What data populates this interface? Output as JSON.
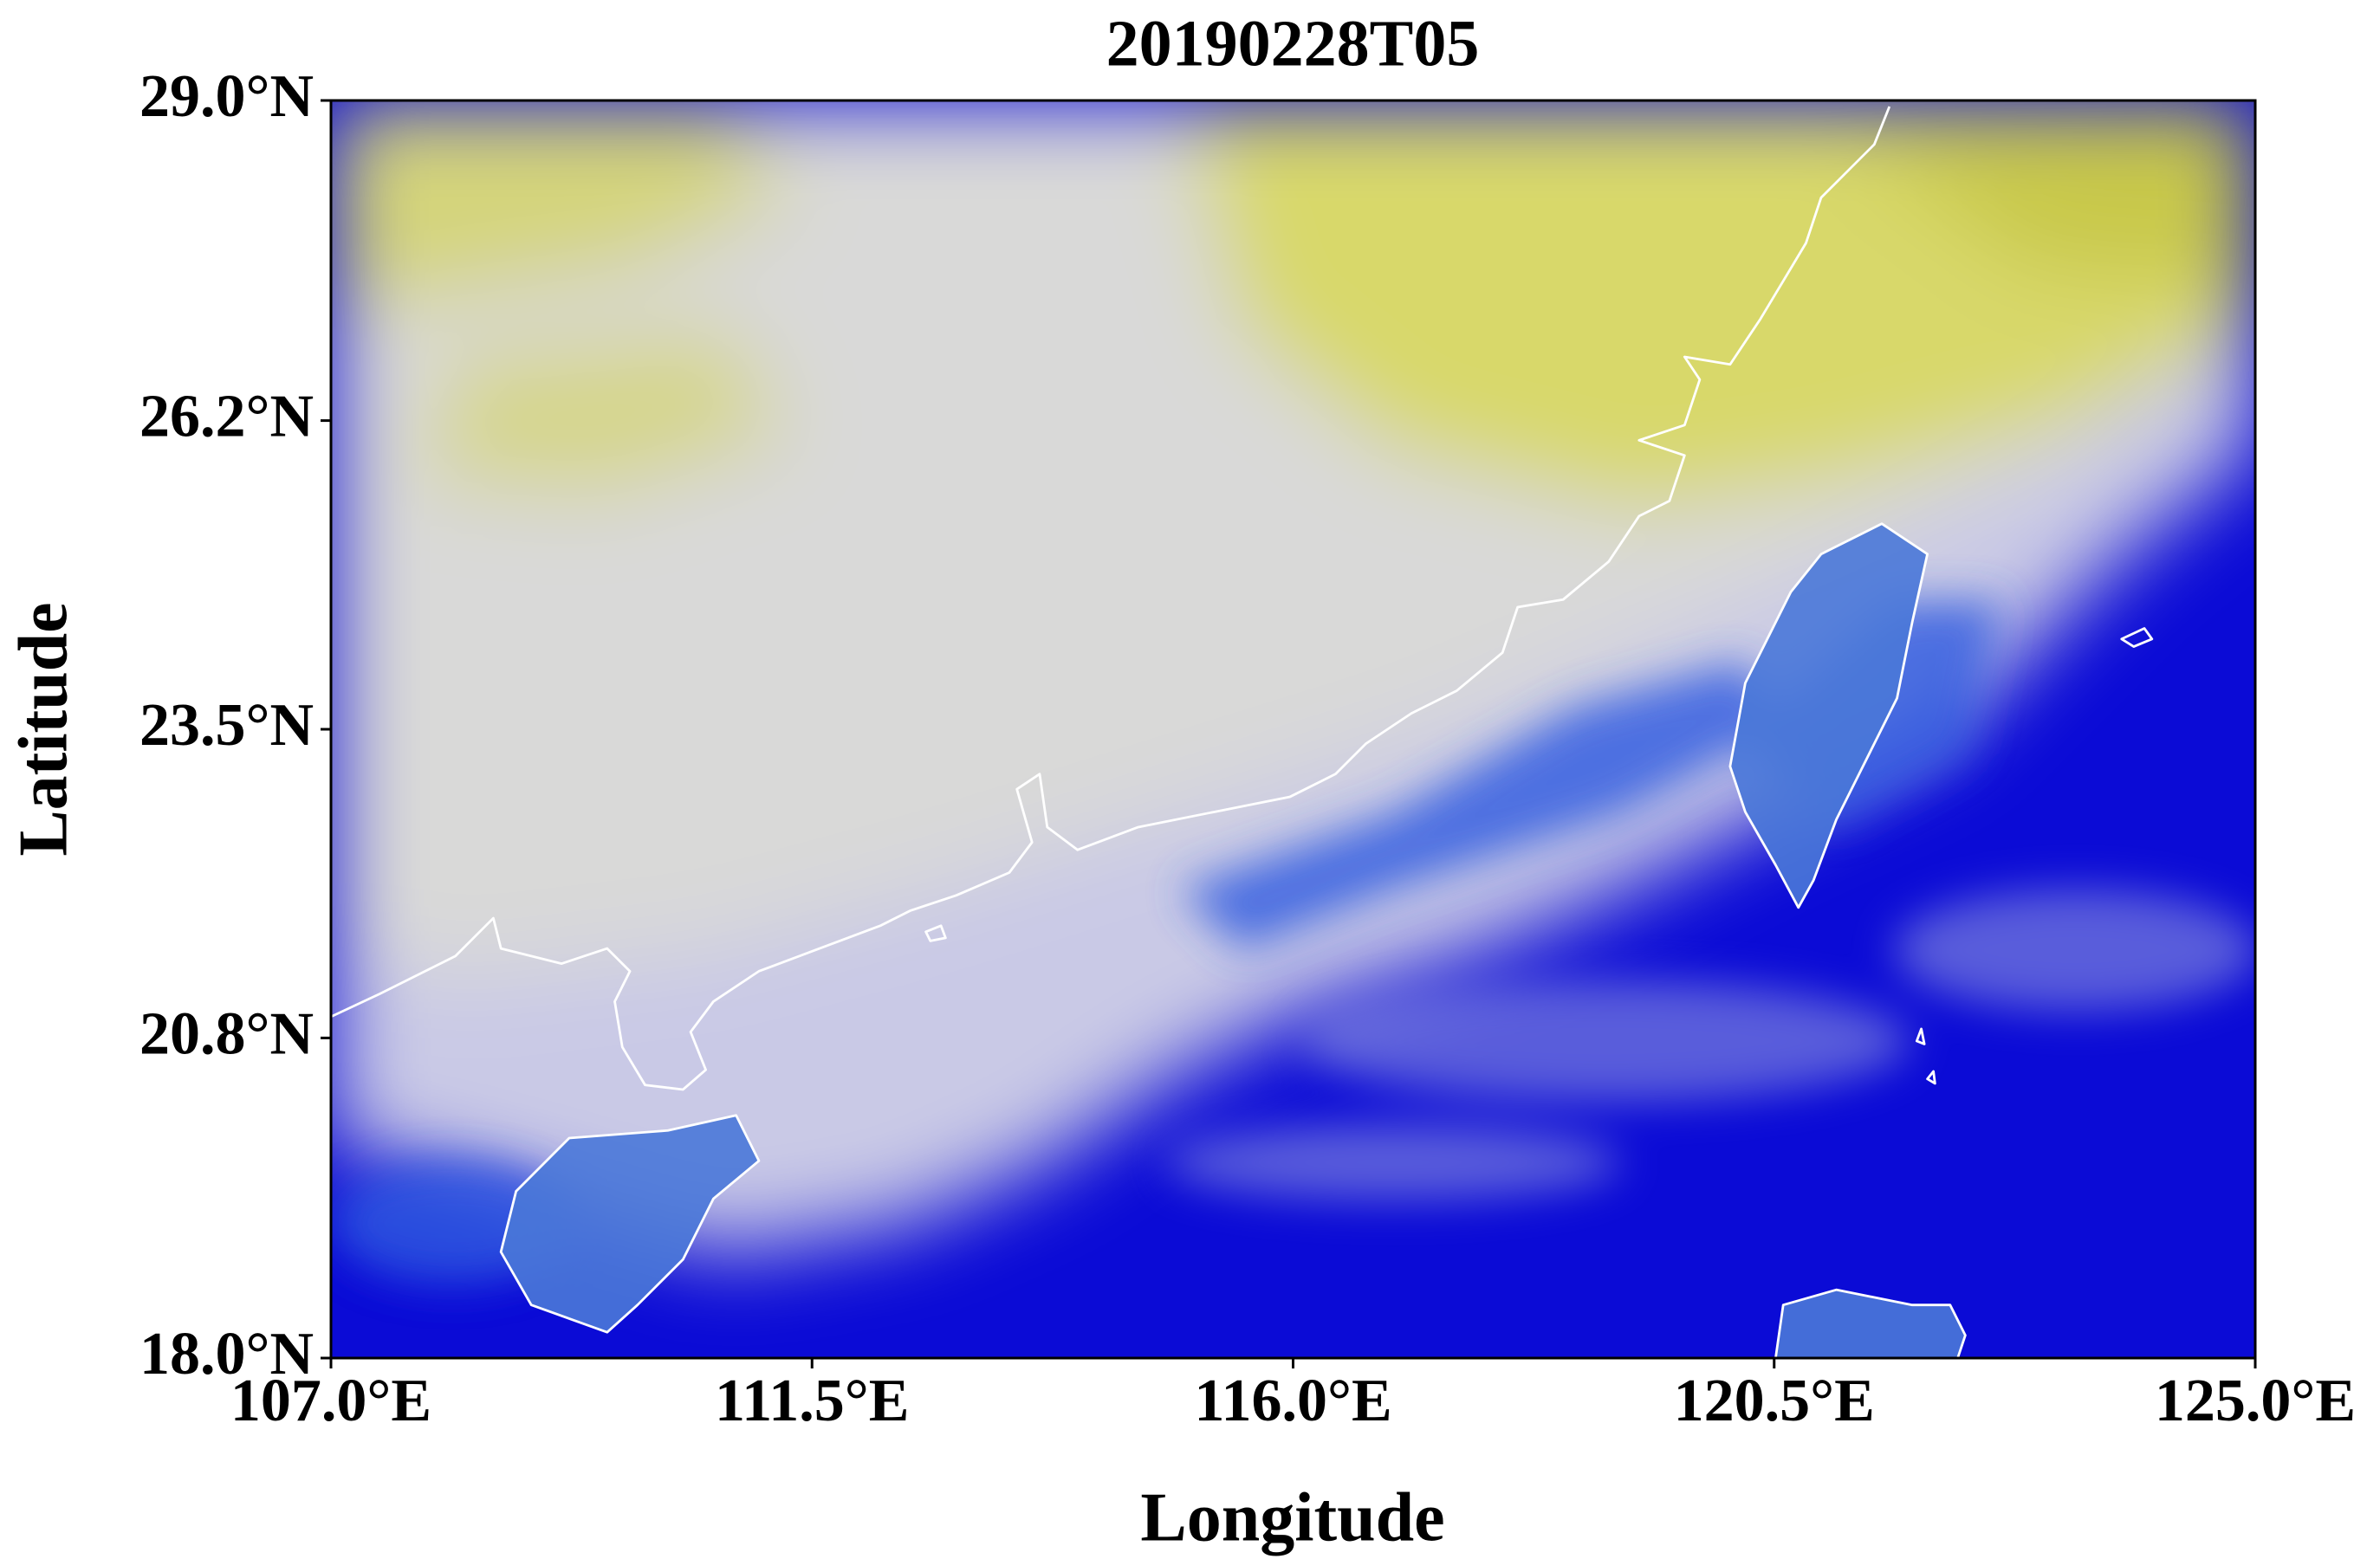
{
  "chart_data": {
    "type": "map",
    "title": "20190228T05",
    "xlabel": "Longitude",
    "ylabel": "Latitude",
    "xlim": [
      107.0,
      125.0
    ],
    "ylim": [
      18.0,
      29.0
    ],
    "xticks": [
      {
        "value": 107.0,
        "label": "107.0°E"
      },
      {
        "value": 111.5,
        "label": "111.5°E"
      },
      {
        "value": 116.0,
        "label": "116.0°E"
      },
      {
        "value": 120.5,
        "label": "120.5°E"
      },
      {
        "value": 125.0,
        "label": "125.0°E"
      }
    ],
    "yticks": [
      {
        "value": 18.0,
        "label": "18.0°N"
      },
      {
        "value": 20.8,
        "label": "20.8°N"
      },
      {
        "value": 23.5,
        "label": "23.5°N"
      },
      {
        "value": 26.2,
        "label": "26.2°N"
      },
      {
        "value": 29.0,
        "label": "29.0°N"
      }
    ]
  }
}
